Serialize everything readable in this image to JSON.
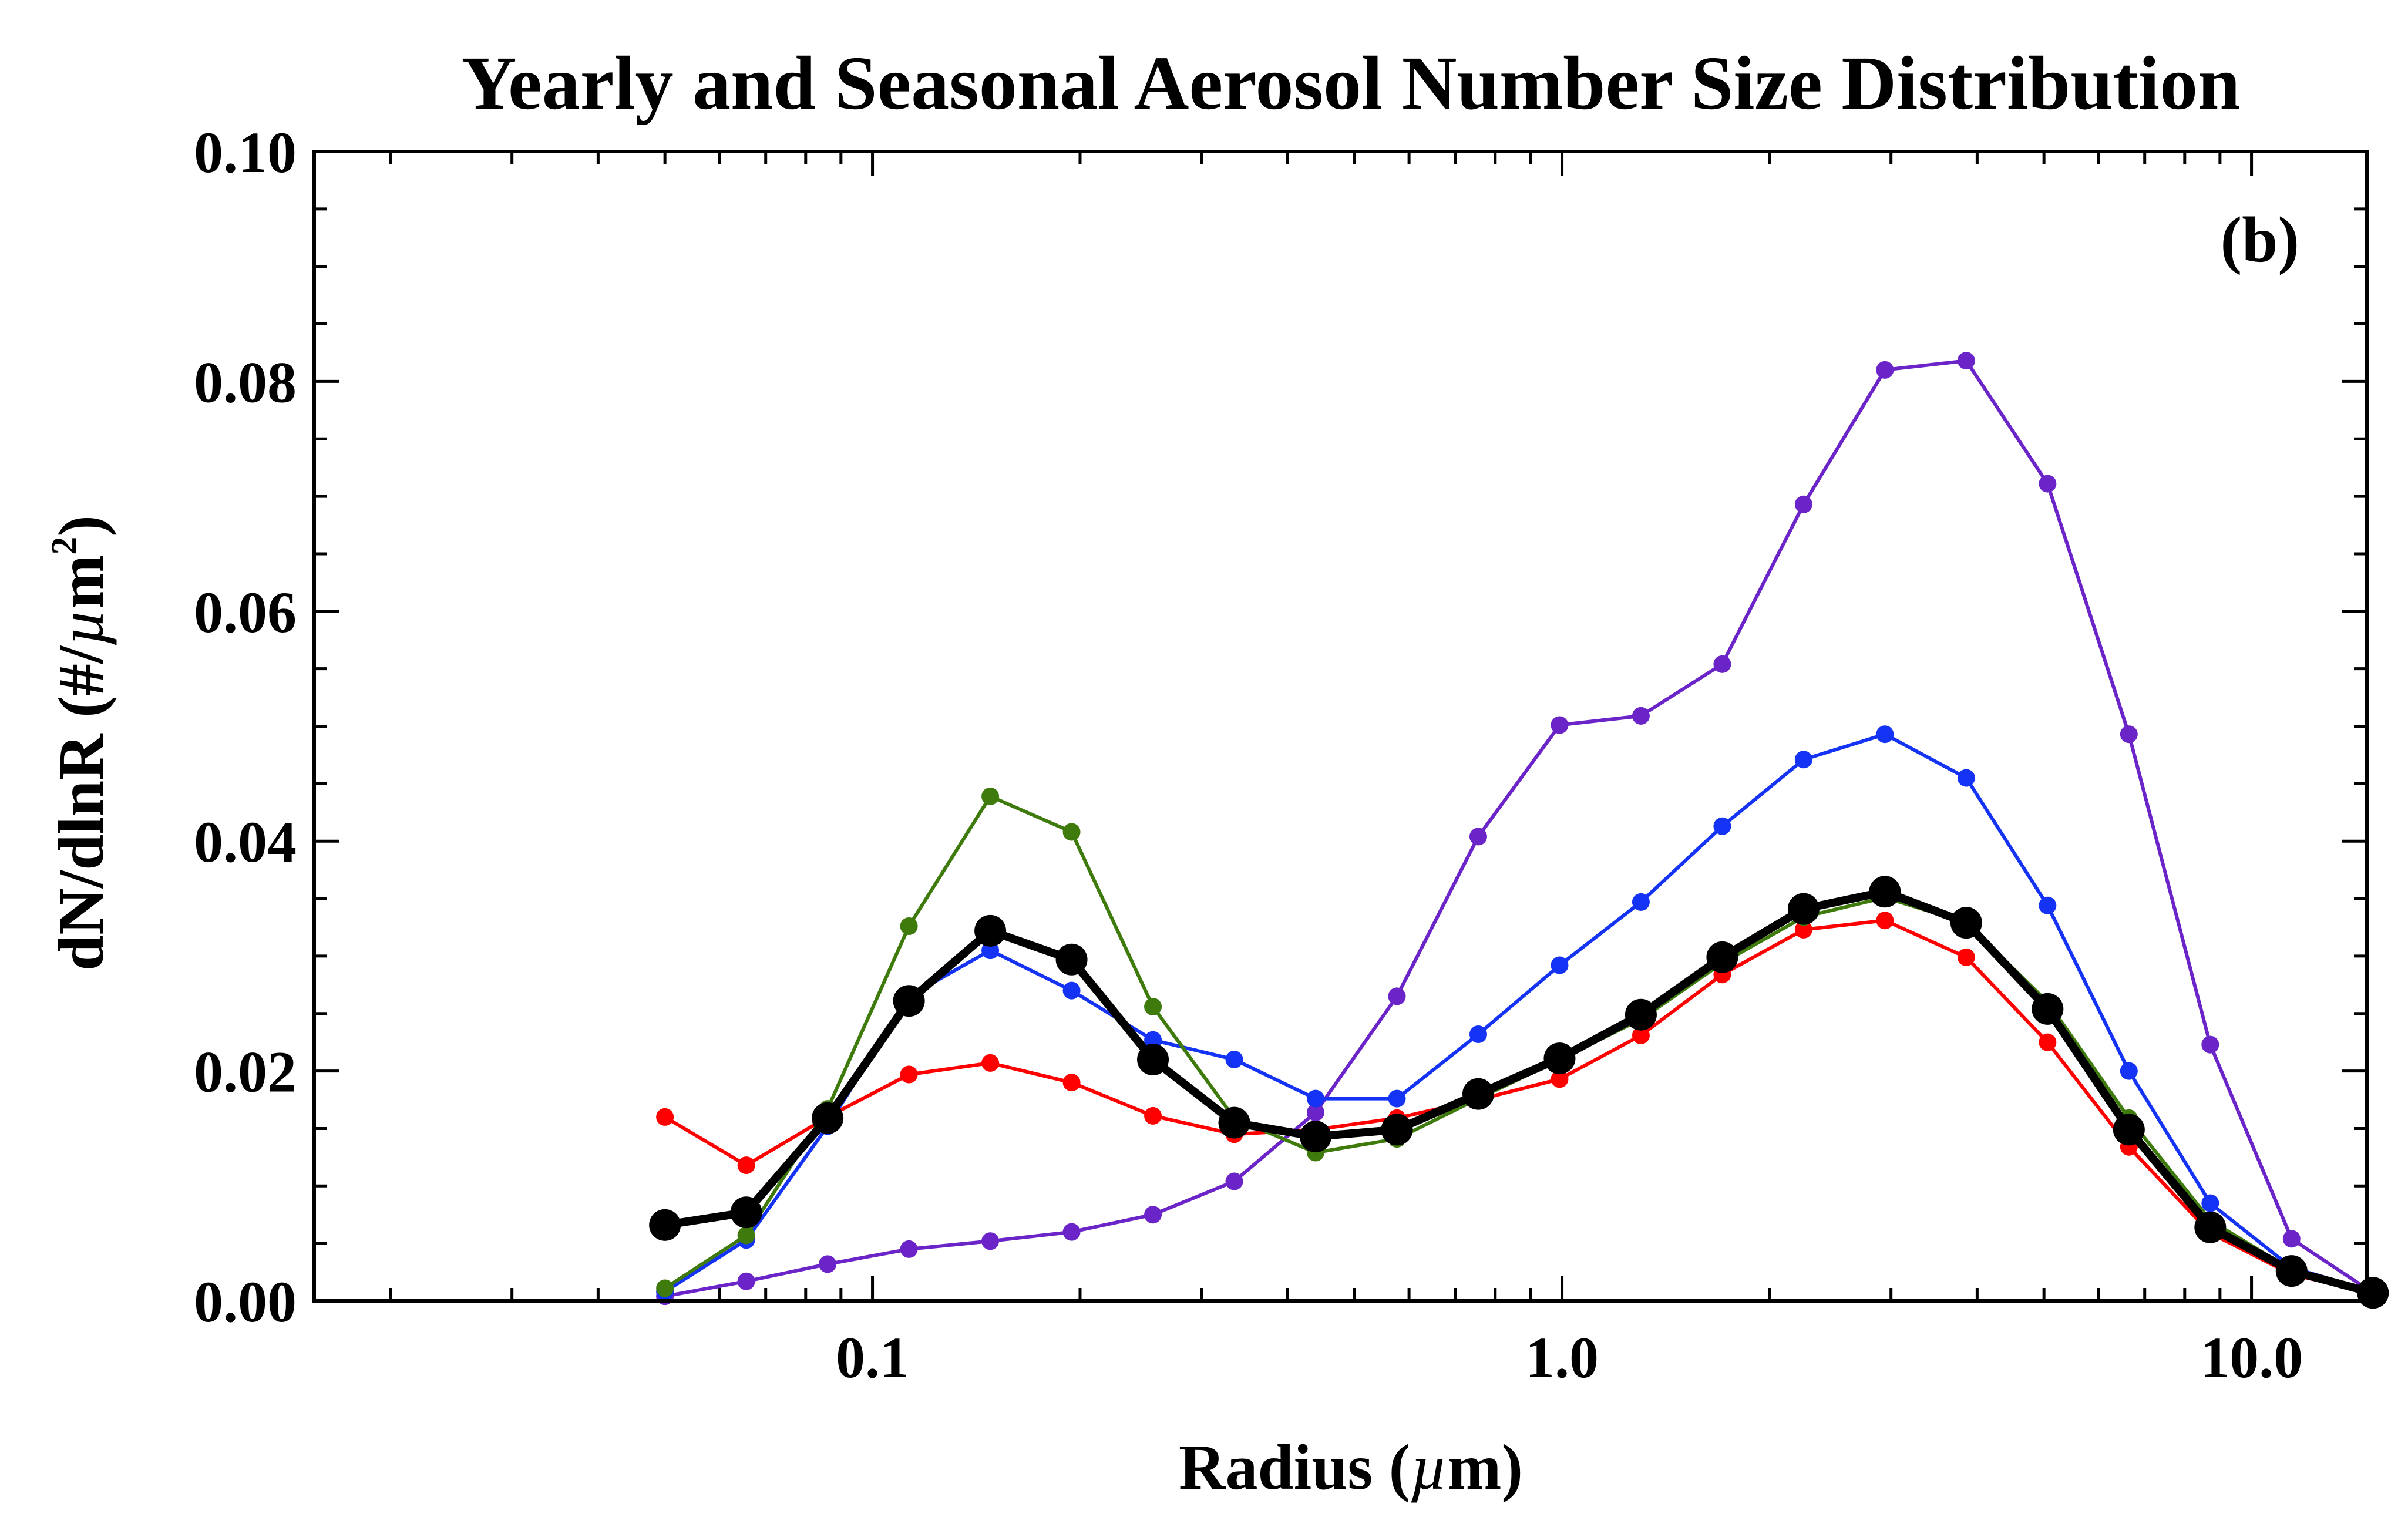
{
  "chart_data": {
    "type": "line",
    "title": "Yearly and Seasonal Aerosol Number Size Distribution",
    "panel_label": "(b)",
    "xlabel": "Radius (µm)",
    "ylabel": "dN/dlnR (#/µm²)",
    "xscale": "log",
    "xlim": [
      0.0155,
      14.7
    ],
    "ylim": [
      0,
      0.1
    ],
    "xticks": [
      0.1,
      1.0,
      10.0
    ],
    "xtick_labels": [
      "0.1",
      "1.0",
      "10.0"
    ],
    "yticks": [
      0,
      0.02,
      0.04,
      0.06,
      0.08,
      0.1
    ],
    "ytick_labels": [
      "0.00",
      "0.02",
      "0.04",
      "0.06",
      "0.08",
      "0.10"
    ],
    "grid": false,
    "x": [
      0.05,
      0.065604,
      0.086076,
      0.112939,
      0.148184,
      0.194427,
      0.255103,
      0.334714,
      0.439168,
      0.576222,
      0.756036,
      0.991968,
      1.30153,
      1.7077,
      2.24062,
      2.93985,
      3.8573,
      5.06105,
      6.64045,
      8.71271,
      11.4319,
      15.0
    ],
    "series": [
      {
        "color": "#000000",
        "values": [
          0.0066,
          0.0077,
          0.0159,
          0.0261,
          0.0322,
          0.0297,
          0.021,
          0.0155,
          0.0143,
          0.0149,
          0.018,
          0.0211,
          0.0249,
          0.0299,
          0.0341,
          0.0356,
          0.0329,
          0.0254,
          0.0149,
          0.0064,
          0.0026,
          0.0007
        ]
      },
      {
        "color": "#1433f5",
        "values": [
          0.0008,
          0.0053,
          0.0152,
          0.0265,
          0.0305,
          0.027,
          0.0227,
          0.021,
          0.0176,
          0.0176,
          0.0232,
          0.0292,
          0.0347,
          0.0413,
          0.0471,
          0.0493,
          0.0455,
          0.0344,
          0.02,
          0.0085,
          0.0029,
          0.0008
        ]
      },
      {
        "color": "#ff0000",
        "values": [
          0.016,
          0.0118,
          0.016,
          0.0197,
          0.0207,
          0.019,
          0.0161,
          0.0145,
          0.0149,
          0.0159,
          0.0175,
          0.0193,
          0.0231,
          0.0284,
          0.0323,
          0.0331,
          0.0299,
          0.0225,
          0.0134,
          0.0059,
          0.0023,
          0.0007
        ]
      },
      {
        "color": "#3e7a0c",
        "values": [
          0.0011,
          0.0057,
          0.0167,
          0.0326,
          0.0439,
          0.0408,
          0.0256,
          0.0159,
          0.0129,
          0.0141,
          0.0176,
          0.021,
          0.0245,
          0.0294,
          0.0334,
          0.0351,
          0.0329,
          0.026,
          0.0159,
          0.007,
          0.0027,
          0.0008
        ]
      },
      {
        "color": "#6a24c8",
        "values": [
          0.0004,
          0.0017,
          0.0032,
          0.0045,
          0.0052,
          0.006,
          0.0075,
          0.0104,
          0.0164,
          0.0265,
          0.0404,
          0.0501,
          0.0509,
          0.0554,
          0.0693,
          0.081,
          0.0818,
          0.0711,
          0.0493,
          0.0223,
          0.0054,
          0.0007
        ]
      }
    ]
  }
}
